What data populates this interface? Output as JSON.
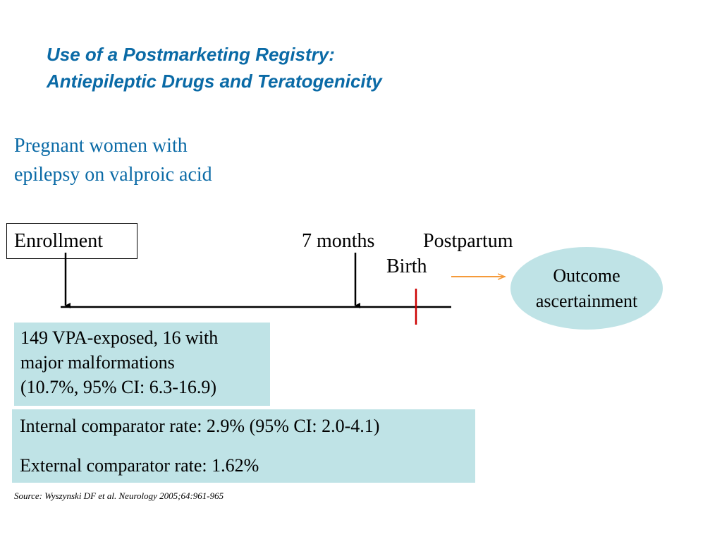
{
  "title": {
    "line1": "Use of a Postmarketing Registry:",
    "line2": "Antiepileptic Drugs and Teratogenicity"
  },
  "population": {
    "line1": "Pregnant women with",
    "line2": "epilepsy on valproic acid"
  },
  "timeline": {
    "enrollment": "Enrollment",
    "seven_months": "7 months",
    "postpartum": "Postpartum",
    "birth": "Birth"
  },
  "outcome": {
    "line1": "Outcome",
    "line2": "ascertainment"
  },
  "results": {
    "line1": "149 VPA-exposed, 16 with",
    "line2": "major malformations",
    "line3": "(10.7%, 95% CI: 6.3-16.9)"
  },
  "comparators": {
    "internal": "Internal comparator rate: 2.9% (95% CI: 2.0-4.1)",
    "external": "External comparator rate: 1.62%"
  },
  "source": "Source: Wyszynski DF et al. Neurology 2005;64:961-965",
  "colors": {
    "title": "#0a6aa6",
    "box_fill": "#bfe3e6",
    "birth_marker": "#cc0000",
    "arrow": "#f59a3a"
  }
}
